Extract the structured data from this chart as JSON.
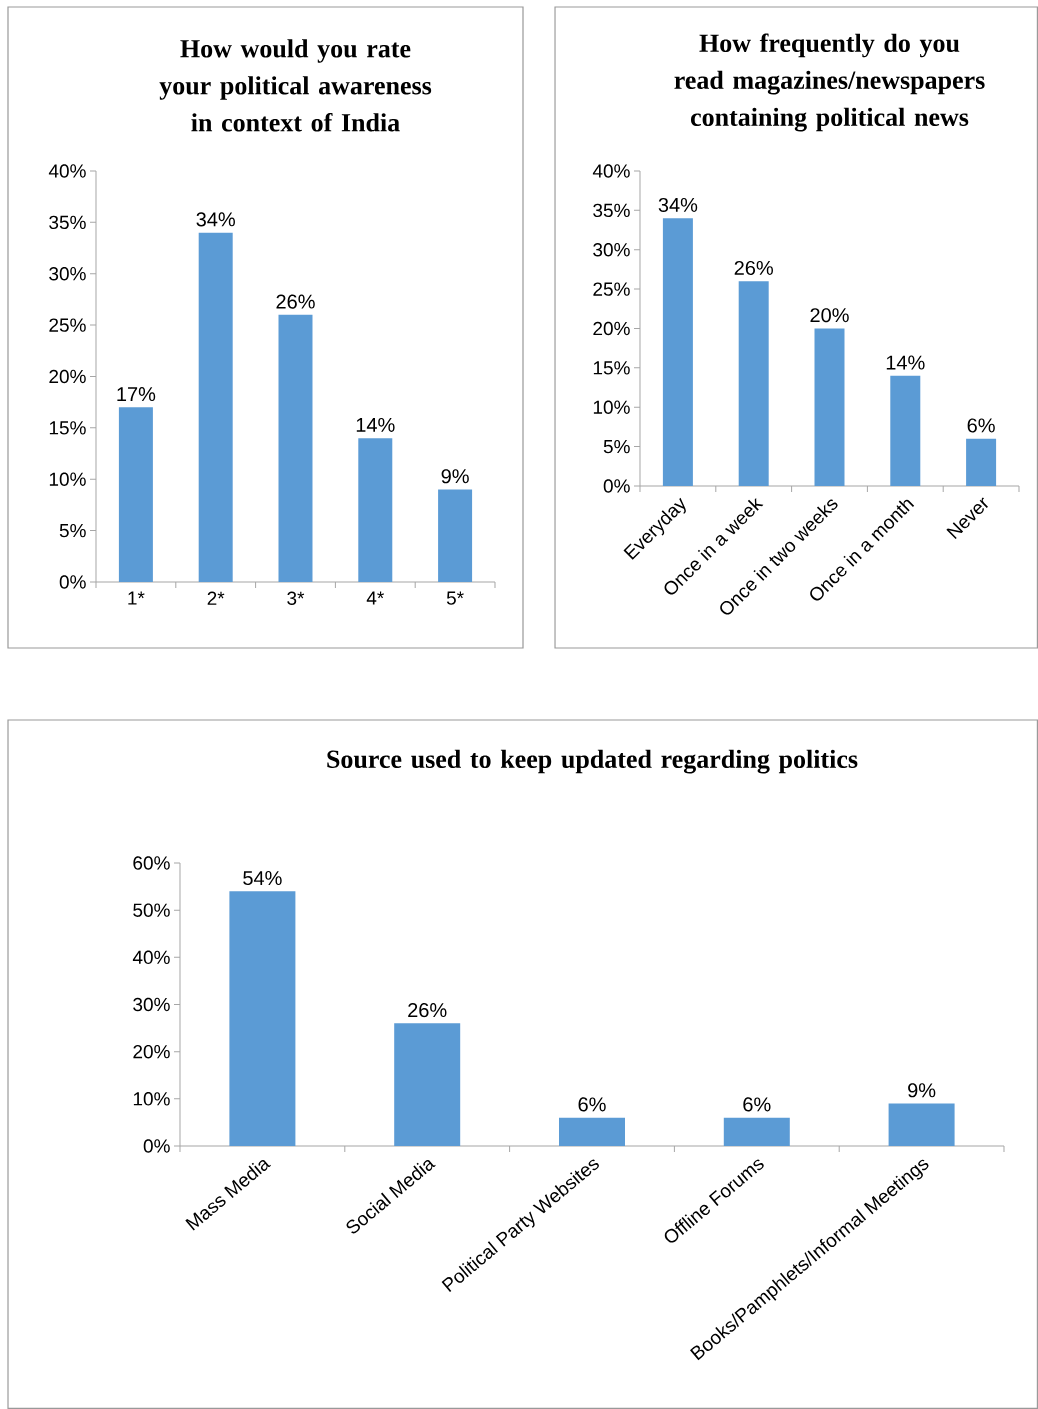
{
  "chart_data": [
    {
      "type": "bar",
      "title": "How would  you rate your political  awareness in context of India",
      "categories": [
        "1*",
        "2*",
        "3*",
        "4*",
        "5*"
      ],
      "values": [
        17,
        34,
        26,
        14,
        9
      ],
      "value_labels": [
        "17%",
        "34%",
        "26%",
        "14%",
        "9%"
      ],
      "color": "#5b9bd5",
      "ylim": [
        0,
        40
      ],
      "yticks": [
        {
          "value": 0,
          "label": "0%"
        },
        {
          "value": 5,
          "label": "5%"
        },
        {
          "value": 10,
          "label": "10%"
        },
        {
          "value": 15,
          "label": "15%"
        },
        {
          "value": 20,
          "label": "20%"
        },
        {
          "value": 25,
          "label": "25%"
        },
        {
          "value": 30,
          "label": "30%"
        },
        {
          "value": 35,
          "label": "35%"
        },
        {
          "value": 40,
          "label": "40%"
        }
      ]
    },
    {
      "type": "bar",
      "title": "How frequently  do you read magazines/newspapers containing  political  news",
      "categories": [
        "Everyday",
        "Once in a week",
        "Once in two weeks",
        "Once in a month",
        "Never"
      ],
      "values": [
        34,
        26,
        20,
        14,
        6
      ],
      "value_labels": [
        "34%",
        "26%",
        "20%",
        "14%",
        "6%"
      ],
      "color": "#5b9bd5",
      "ylim": [
        0,
        40
      ],
      "yticks": [
        {
          "value": 0,
          "label": "0%"
        },
        {
          "value": 5,
          "label": "5%"
        },
        {
          "value": 10,
          "label": "10%"
        },
        {
          "value": 15,
          "label": "15%"
        },
        {
          "value": 20,
          "label": "20%"
        },
        {
          "value": 25,
          "label": "25%"
        },
        {
          "value": 30,
          "label": "30%"
        },
        {
          "value": 35,
          "label": "35%"
        },
        {
          "value": 40,
          "label": "40%"
        }
      ]
    },
    {
      "type": "bar",
      "title": "Source used to keep updated regarding politics",
      "categories": [
        "Mass Media",
        "Social Media",
        "Political Party Websites",
        "Offline Forums",
        "Books/Pamphlets/Informal Meetings"
      ],
      "values": [
        54,
        26,
        6,
        6,
        9
      ],
      "value_labels": [
        "54%",
        "26%",
        "6%",
        "6%",
        "9%"
      ],
      "color": "#5b9bd5",
      "ylim": [
        0,
        60
      ],
      "yticks": [
        {
          "value": 0,
          "label": "0%"
        },
        {
          "value": 10,
          "label": "10%"
        },
        {
          "value": 20,
          "label": "20%"
        },
        {
          "value": 30,
          "label": "30%"
        },
        {
          "value": 40,
          "label": "40%"
        },
        {
          "value": 50,
          "label": "50%"
        },
        {
          "value": 60,
          "label": "60%"
        }
      ]
    }
  ]
}
